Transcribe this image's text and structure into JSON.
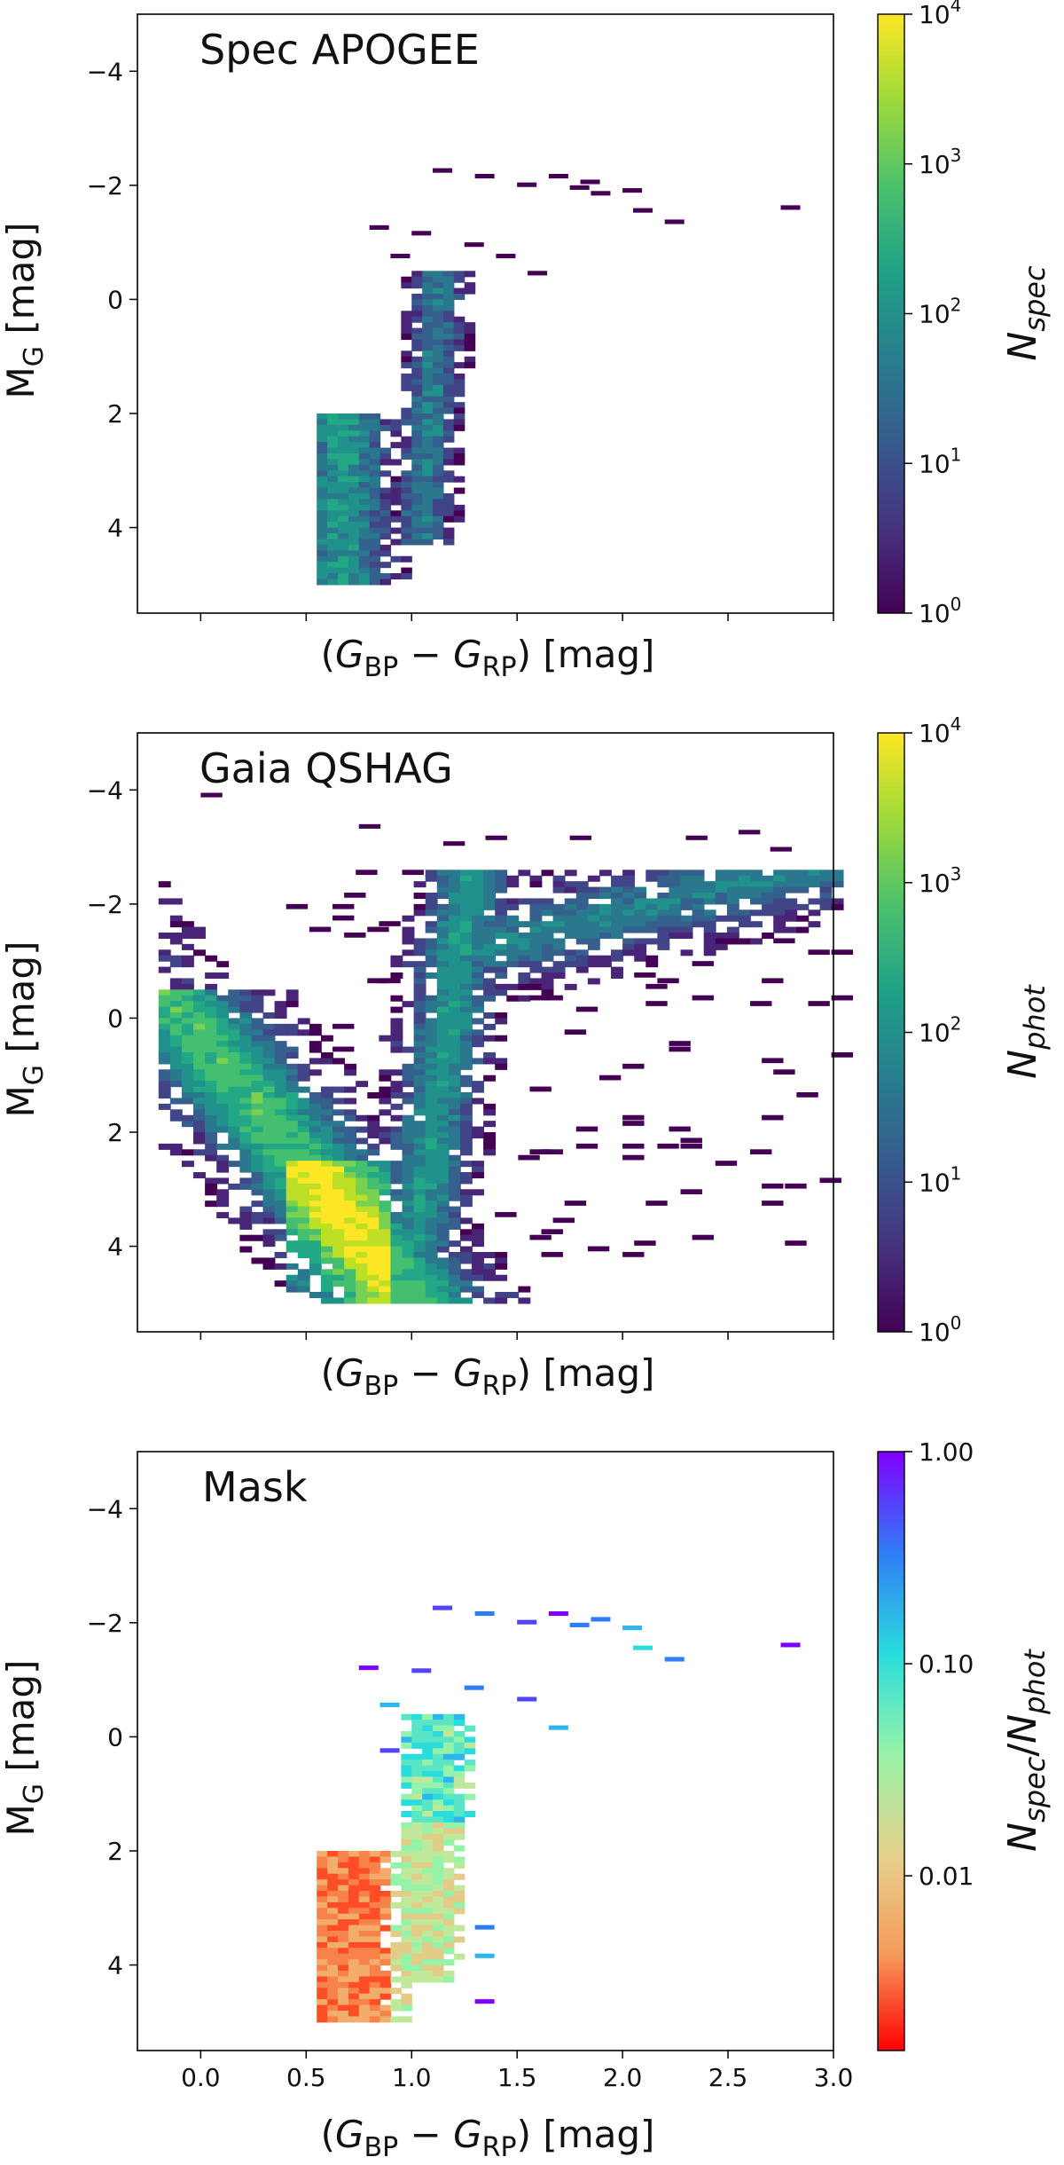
{
  "chart_data": [
    {
      "type": "heatmap",
      "title": "Spec APOGEE",
      "xlabel": "(G_BP − G_RP) [mag]",
      "ylabel": "M_G [mag]",
      "xlim": [
        -0.3,
        3.0
      ],
      "ylim": [
        5.5,
        -5.0
      ],
      "xticks": [
        0.0,
        0.5,
        1.0,
        1.5,
        2.0,
        2.5,
        3.0
      ],
      "xticklabels_visible": false,
      "yticks": [
        -4,
        -2,
        0,
        2,
        4
      ],
      "ytick_labels": [
        "−4",
        "−2",
        "0",
        "2",
        "4"
      ],
      "colorbar": {
        "label": "N_spec",
        "scale": "log",
        "range": [
          1,
          10000
        ],
        "colormap": "viridis",
        "tick_values": [
          1,
          10,
          100,
          1000,
          10000
        ],
        "tick_labels": [
          {
            "base": "10",
            "exp": "0"
          },
          {
            "base": "10",
            "exp": "1"
          },
          {
            "base": "10",
            "exp": "2"
          },
          {
            "base": "10",
            "exp": "3"
          },
          {
            "base": "10",
            "exp": "4"
          }
        ]
      }
    },
    {
      "type": "heatmap",
      "title": "Gaia QSHAG",
      "xlabel": "(G_BP − G_RP) [mag]",
      "ylabel": "M_G [mag]",
      "xlim": [
        -0.3,
        3.0
      ],
      "ylim": [
        5.5,
        -5.0
      ],
      "xticks": [
        0.0,
        0.5,
        1.0,
        1.5,
        2.0,
        2.5,
        3.0
      ],
      "xticklabels_visible": false,
      "yticks": [
        -4,
        -2,
        0,
        2,
        4
      ],
      "ytick_labels": [
        "−4",
        "−2",
        "0",
        "2",
        "4"
      ],
      "colorbar": {
        "label": "N_phot",
        "scale": "log",
        "range": [
          1,
          10000
        ],
        "colormap": "viridis",
        "tick_values": [
          1,
          10,
          100,
          1000,
          10000
        ],
        "tick_labels": [
          {
            "base": "10",
            "exp": "0"
          },
          {
            "base": "10",
            "exp": "1"
          },
          {
            "base": "10",
            "exp": "2"
          },
          {
            "base": "10",
            "exp": "3"
          },
          {
            "base": "10",
            "exp": "4"
          }
        ]
      }
    },
    {
      "type": "heatmap",
      "title": "Mask",
      "xlabel": "(G_BP − G_RP) [mag]",
      "ylabel": "M_G [mag]",
      "xlim": [
        -0.3,
        3.0
      ],
      "ylim": [
        5.5,
        -5.0
      ],
      "xticks": [
        0.0,
        0.5,
        1.0,
        1.5,
        2.0,
        2.5,
        3.0
      ],
      "xtick_labels": [
        "0.0",
        "0.5",
        "1.0",
        "1.5",
        "2.0",
        "2.5",
        "3.0"
      ],
      "xticklabels_visible": true,
      "yticks": [
        -4,
        -2,
        0,
        2,
        4
      ],
      "ytick_labels": [
        "−4",
        "−2",
        "0",
        "2",
        "4"
      ],
      "colorbar": {
        "label": "N_spec/N_phot",
        "scale": "log",
        "range": [
          0.0015,
          1.0
        ],
        "colormap": "rainbow",
        "tick_values": [
          0.01,
          0.1,
          1.0
        ],
        "tick_labels": [
          "0.01",
          "0.10",
          "1.00"
        ]
      }
    }
  ]
}
